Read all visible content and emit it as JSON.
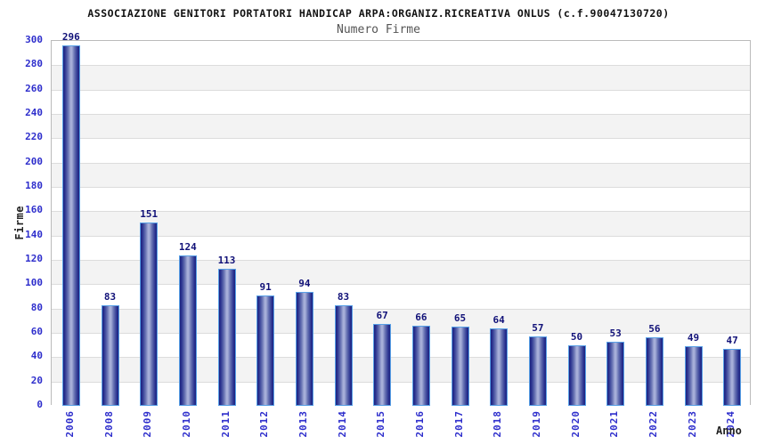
{
  "title": "ASSOCIAZIONE GENITORI PORTATORI HANDICAP ARPA:ORGANIZ.RICREATIVA ONLUS (c.f.90047130720)",
  "subtitle": "Numero Firme",
  "chart_data": {
    "type": "bar",
    "title": "ASSOCIAZIONE GENITORI PORTATORI HANDICAP ARPA:ORGANIZ.RICREATIVA ONLUS (c.f.90047130720)",
    "subtitle": "Numero Firme",
    "categories": [
      "2006",
      "2008",
      "2009",
      "2010",
      "2011",
      "2012",
      "2013",
      "2014",
      "2015",
      "2016",
      "2017",
      "2018",
      "2019",
      "2020",
      "2021",
      "2022",
      "2023",
      "2024"
    ],
    "values": [
      296,
      83,
      151,
      124,
      113,
      91,
      94,
      83,
      67,
      66,
      65,
      64,
      57,
      50,
      53,
      56,
      49,
      47
    ],
    "xlabel": "Anno",
    "ylabel": "Firme",
    "ylim": [
      0,
      300
    ],
    "ytick_step": 20,
    "grid": "horizontal-bands",
    "legend_position": "none",
    "colors": {
      "bar_dark": "#1c2280",
      "bar_light": "#a6aed8",
      "bar_border": "#58a0e6",
      "value_label": "#111178",
      "tick_label": "#2e2ecc",
      "band_gray": "#f3f3f3",
      "band_white": "#ffffff",
      "gridline": "#dcdcdc",
      "plot_border": "#bbbbbb",
      "subtitle_color": "#555555",
      "axis_title_color": "#222222"
    }
  }
}
